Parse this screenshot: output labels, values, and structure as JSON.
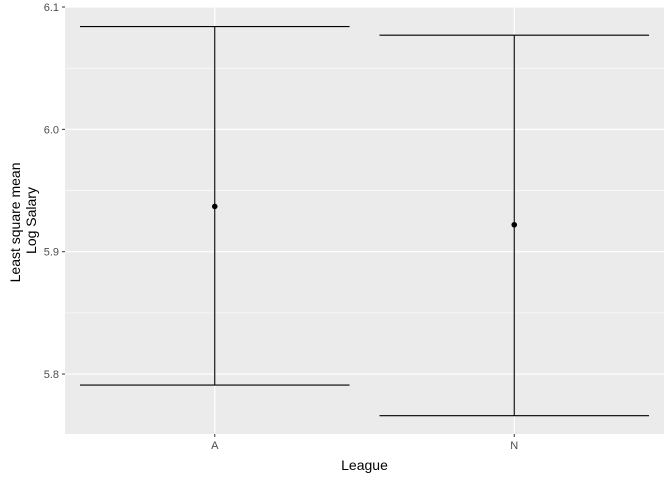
{
  "chart_data": {
    "type": "errorbar",
    "categories": [
      "A",
      "N"
    ],
    "series": [
      {
        "values": [
          5.937,
          5.922
        ],
        "lower": [
          5.791,
          5.766
        ],
        "upper": [
          6.084,
          6.077
        ]
      }
    ],
    "xlabel": "League",
    "ylabel_lines": [
      "Least square mean",
      "Log Salary"
    ],
    "ylim": [
      5.751,
      6.1
    ],
    "yticks": [
      5.8,
      5.9,
      6.0,
      6.1
    ],
    "ytick_labels": [
      "5.8",
      "5.9",
      "6.0",
      "6.1"
    ],
    "grid": true,
    "legend": "none",
    "colors": {
      "panel": "#ebebeb",
      "grid": "#ffffff",
      "marks": "#000000",
      "tick_text": "#4d4d4d"
    }
  }
}
